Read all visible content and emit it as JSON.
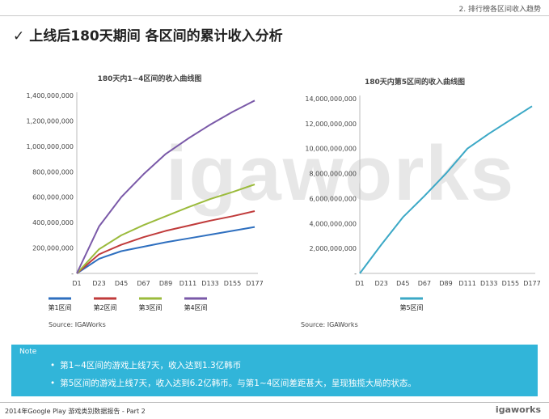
{
  "header": {
    "section": "2. 排行榜各区间收入趋势"
  },
  "page_title": "上线后180天期间 各区间的累计收入分析",
  "watermark": "igaworks",
  "chart_data": [
    {
      "type": "line",
      "title": "180天内1~4区间的收入曲线图",
      "x": [
        "D1",
        "D23",
        "D45",
        "D67",
        "D89",
        "D111",
        "D133",
        "D155",
        "D177"
      ],
      "ylim": [
        0,
        1400000000
      ],
      "yticks": [
        "-",
        "200,000,000",
        "400,000,000",
        "600,000,000",
        "800,000,000",
        "1,000,000,000",
        "1,200,000,000",
        "1,400,000,000"
      ],
      "series": [
        {
          "name": "第1区间",
          "color": "#2e6fbf",
          "values": [
            0,
            115000000,
            175000000,
            210000000,
            245000000,
            275000000,
            305000000,
            335000000,
            365000000
          ]
        },
        {
          "name": "第2区间",
          "color": "#c03b3b",
          "values": [
            0,
            150000000,
            225000000,
            285000000,
            335000000,
            375000000,
            415000000,
            450000000,
            490000000
          ]
        },
        {
          "name": "第3区间",
          "color": "#9bbb3c",
          "values": [
            0,
            190000000,
            300000000,
            380000000,
            450000000,
            520000000,
            585000000,
            640000000,
            700000000
          ]
        },
        {
          "name": "第4区间",
          "color": "#7a59a8",
          "values": [
            0,
            370000000,
            600000000,
            780000000,
            940000000,
            1060000000,
            1170000000,
            1270000000,
            1360000000
          ]
        }
      ],
      "source": "Source: IGAWorks"
    },
    {
      "type": "line",
      "title": "180天内第5区间的收入曲线图",
      "x": [
        "D1",
        "D23",
        "D45",
        "D67",
        "D89",
        "D111",
        "D133",
        "D155",
        "D177"
      ],
      "ylim": [
        0,
        14000000000
      ],
      "yticks": [
        "-",
        "2,000,000,000",
        "4,000,000,000",
        "6,000,000,000",
        "8,000,000,000",
        "10,000,000,000",
        "12,000,000,000",
        "14,000,000,000"
      ],
      "series": [
        {
          "name": "第5区间",
          "color": "#3ba8c6",
          "values": [
            0,
            2300000000,
            4500000000,
            6200000000,
            8000000000,
            10000000000,
            11200000000,
            12300000000,
            13400000000
          ]
        }
      ],
      "source": "Source: IGAWorks"
    }
  ],
  "note": {
    "label": "Note",
    "items": [
      "第1~4区间的游戏上线7天，收入达到1.3亿韩币",
      "第5区间的游戏上线7天，收入达到6.2亿韩币。与第1~4区间差距甚大，呈现独揽大局的状态。"
    ]
  },
  "footer": {
    "text": "2014年Google Play 游戏类别数据报告 - Part 2",
    "logo": "igaworks"
  }
}
